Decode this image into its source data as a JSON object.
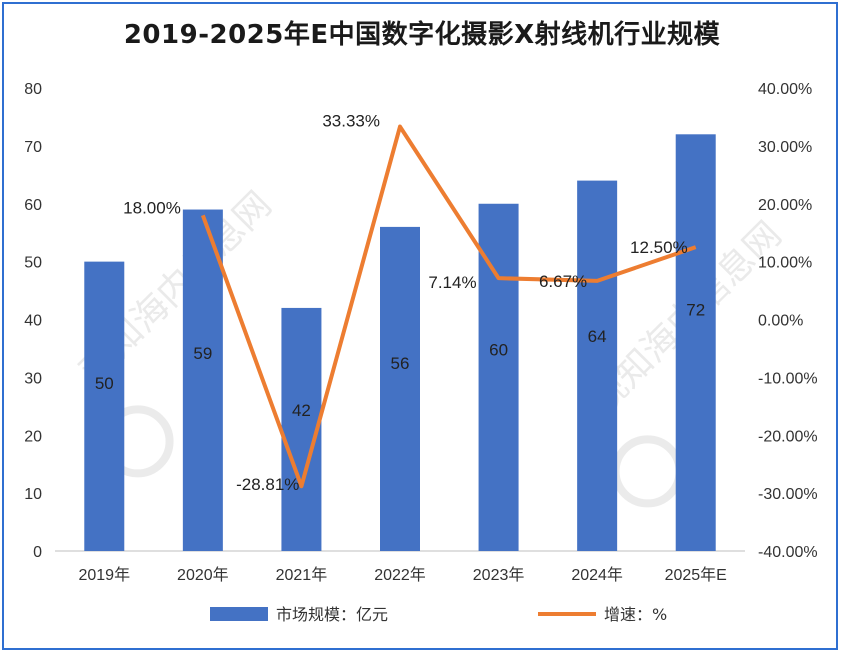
{
  "chart_data": {
    "type": "bar",
    "title": "2019-2025年E中国数字化摄影X射线机行业规模",
    "categories": [
      "2019年",
      "2020年",
      "2021年",
      "2022年",
      "2023年",
      "2024年",
      "2025年E"
    ],
    "series": [
      {
        "name": "市场规模：亿元",
        "type": "bar",
        "axis": "left",
        "values": [
          50,
          59,
          42,
          56,
          60,
          64,
          72
        ],
        "labels": [
          "50",
          "59",
          "42",
          "56",
          "60",
          "64",
          "72"
        ],
        "color": "#4472c4"
      },
      {
        "name": "增速：%",
        "type": "line",
        "axis": "right",
        "values": [
          null,
          18.0,
          -28.81,
          33.33,
          7.14,
          6.67,
          12.5
        ],
        "labels": [
          "",
          "18.00%",
          "-28.81%",
          "33.33%",
          "7.14%",
          "6.67%",
          "12.50%"
        ],
        "color": "#ed7d31"
      }
    ],
    "ylim": [
      0,
      80
    ],
    "y_ticks": [
      "0",
      "10",
      "20",
      "30",
      "40",
      "50",
      "60",
      "70",
      "80"
    ],
    "y2lim": [
      -40,
      40
    ],
    "y2_ticks": [
      "-40.00%",
      "-30.00%",
      "-20.00%",
      "-10.00%",
      "0.00%",
      "10.00%",
      "20.00%",
      "30.00%",
      "40.00%"
    ],
    "grid": false,
    "legend_position": "bottom",
    "watermark": "观知海内信息网"
  }
}
